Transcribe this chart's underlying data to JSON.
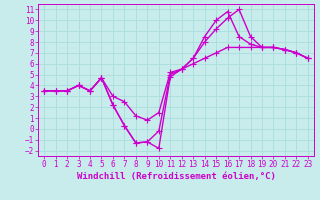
{
  "title": "",
  "xlabel": "Windchill (Refroidissement éolien,°C)",
  "bg_color": "#c8ecec",
  "grid_color": "#aadddd",
  "line_color": "#cc00cc",
  "xlim": [
    -0.5,
    23.5
  ],
  "ylim": [
    -2.5,
    11.5
  ],
  "xticks": [
    0,
    1,
    2,
    3,
    4,
    5,
    6,
    7,
    8,
    9,
    10,
    11,
    12,
    13,
    14,
    15,
    16,
    17,
    18,
    19,
    20,
    21,
    22,
    23
  ],
  "yticks": [
    -2,
    -1,
    0,
    1,
    2,
    3,
    4,
    5,
    6,
    7,
    8,
    9,
    10,
    11
  ],
  "line1_x": [
    0,
    1,
    2,
    3,
    4,
    5,
    6,
    7,
    8,
    9,
    10,
    11,
    12,
    13,
    14,
    15,
    16,
    17,
    18,
    19,
    20,
    21,
    22,
    23
  ],
  "line1_y": [
    3.5,
    3.5,
    3.5,
    4.0,
    3.5,
    4.7,
    3.0,
    2.5,
    1.2,
    0.8,
    1.5,
    5.2,
    5.5,
    6.0,
    6.5,
    7.0,
    7.5,
    7.5,
    7.5,
    7.5,
    7.5,
    7.3,
    7.0,
    6.5
  ],
  "line2_x": [
    0,
    1,
    2,
    3,
    4,
    5,
    6,
    7,
    8,
    9,
    10,
    11,
    12,
    13,
    14,
    15,
    16,
    17,
    18,
    19,
    20,
    21,
    22,
    23
  ],
  "line2_y": [
    3.5,
    3.5,
    3.5,
    4.0,
    3.5,
    4.7,
    2.2,
    0.3,
    -1.3,
    -1.2,
    -1.8,
    4.8,
    5.5,
    6.5,
    8.0,
    9.2,
    10.2,
    11.0,
    8.5,
    7.5,
    7.5,
    7.3,
    7.0,
    6.5
  ],
  "line3_x": [
    0,
    1,
    2,
    3,
    4,
    5,
    6,
    7,
    8,
    9,
    10,
    11,
    12,
    13,
    14,
    15,
    16,
    17,
    18,
    19,
    20,
    21,
    22,
    23
  ],
  "line3_y": [
    3.5,
    3.5,
    3.5,
    4.0,
    3.5,
    4.7,
    2.2,
    0.3,
    -1.3,
    -1.2,
    -0.2,
    5.0,
    5.5,
    6.5,
    8.5,
    10.0,
    10.8,
    8.5,
    7.8,
    7.5,
    7.5,
    7.3,
    7.0,
    6.5
  ],
  "marker": "+",
  "markersize": 4,
  "linewidth": 1.0,
  "tick_fontsize": 5.5,
  "xlabel_fontsize": 6.5
}
